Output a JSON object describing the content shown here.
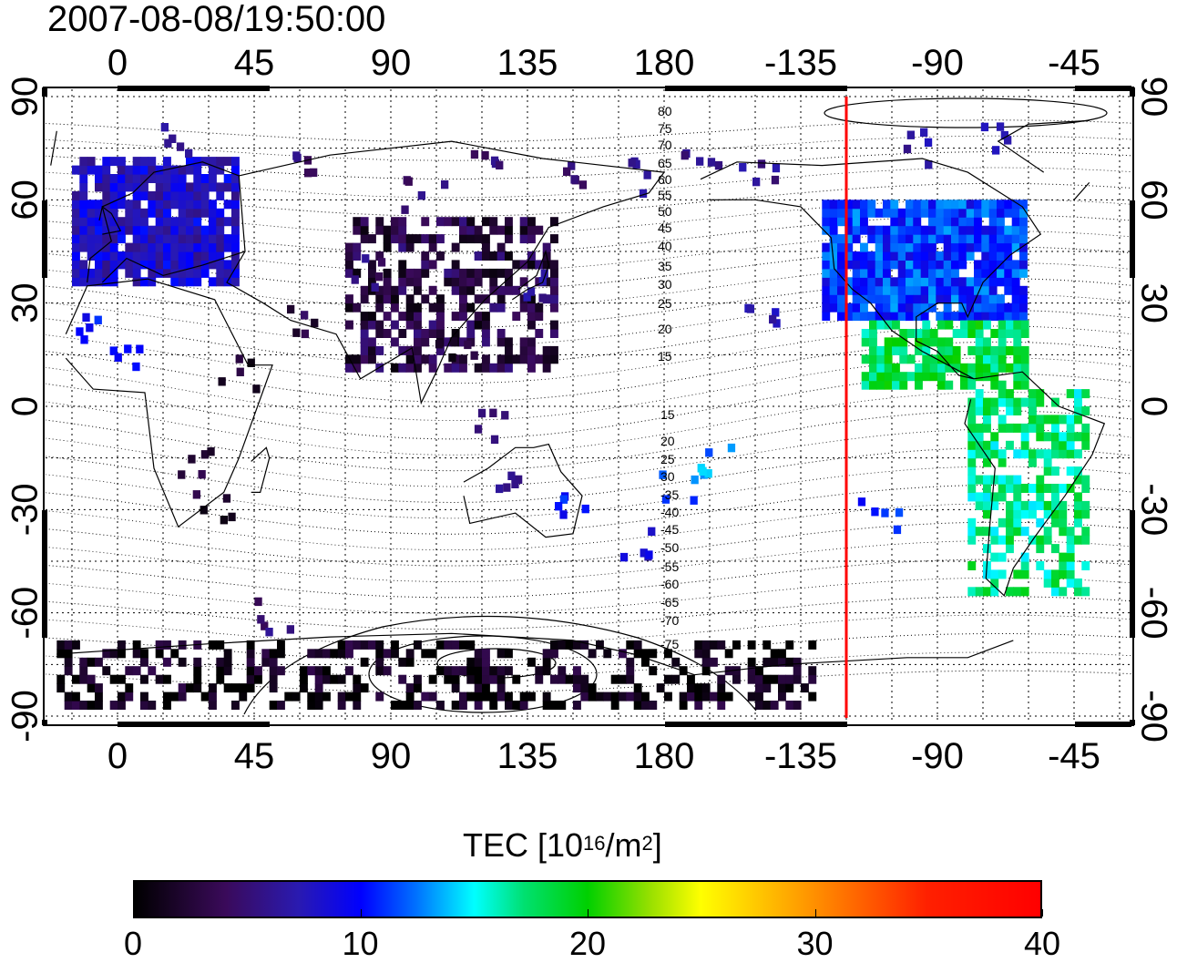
{
  "title": "2007-08-08/19:50:00",
  "map": {
    "longitude_ticks": [
      "0",
      "45",
      "90",
      "135",
      "180",
      "-135",
      "-90",
      "-45"
    ],
    "latitude_ticks": [
      "90",
      "60",
      "30",
      "0",
      "-30",
      "-60",
      "-90"
    ],
    "contour_labels": [
      "80",
      "75",
      "70",
      "65",
      "60",
      "55",
      "50",
      "45",
      "40",
      "35",
      "30",
      "25",
      "20",
      "15",
      "15",
      "20",
      "25",
      "30",
      "-35",
      "-40",
      "-45",
      "-50",
      "-55",
      "-60",
      "-65",
      "-70",
      "-75"
    ],
    "marker_longitude": -120,
    "marker_color": "#ff0000",
    "tec_regions": [
      {
        "region": "Europe",
        "level": 8
      },
      {
        "region": "North America",
        "level": 11
      },
      {
        "region": "Central America",
        "level": 18
      },
      {
        "region": "South America",
        "level": 17
      },
      {
        "region": "East Asia",
        "level": 3
      },
      {
        "region": "Antarctica",
        "level": 1
      }
    ]
  },
  "colorbar": {
    "label_prefix": "TEC  [10",
    "label_exp1": "16",
    "label_mid": "/m",
    "label_exp2": "2",
    "label_suffix": "]",
    "ticks": [
      "0",
      "10",
      "20",
      "30",
      "40"
    ],
    "min": 0,
    "max": 40
  }
}
